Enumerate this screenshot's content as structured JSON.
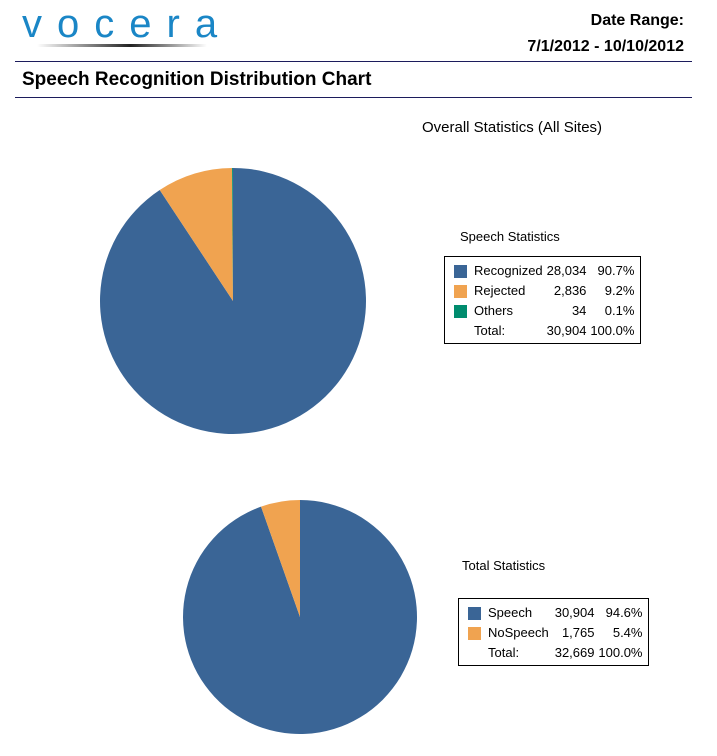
{
  "header": {
    "logo_text": "vocera",
    "date_range_label": "Date Range:",
    "date_range_value": "7/1/2012 - 10/10/2012",
    "report_title": "Speech Recognition Distribution Chart",
    "section_title": "Overall Statistics (All Sites)"
  },
  "colors": {
    "blue": "#3a6596",
    "orange": "#f0a350",
    "green": "#008c6e"
  },
  "speech_stats": {
    "title": "Speech Statistics",
    "rows": [
      {
        "label": "Recognized",
        "count": "28,034",
        "pct": "90.7%",
        "color": "#3a6596"
      },
      {
        "label": "Rejected",
        "count": "2,836",
        "pct": "9.2%",
        "color": "#f0a350"
      },
      {
        "label": "Others",
        "count": "34",
        "pct": "0.1%",
        "color": "#008c6e"
      }
    ],
    "total": {
      "label": "Total:",
      "count": "30,904",
      "pct": "100.0%"
    }
  },
  "total_stats": {
    "title": "Total Statistics",
    "rows": [
      {
        "label": "Speech",
        "count": "30,904",
        "pct": "94.6%",
        "color": "#3a6596"
      },
      {
        "label": "NoSpeech",
        "count": "1,765",
        "pct": "5.4%",
        "color": "#f0a350"
      }
    ],
    "total": {
      "label": "Total:",
      "count": "32,669",
      "pct": "100.0%"
    }
  },
  "chart_data": [
    {
      "type": "pie",
      "title": "Speech Statistics",
      "categories": [
        "Recognized",
        "Rejected",
        "Others"
      ],
      "values": [
        28034,
        2836,
        34
      ],
      "percentages": [
        90.7,
        9.2,
        0.1
      ],
      "colors": [
        "#3a6596",
        "#f0a350",
        "#008c6e"
      ],
      "total": 30904,
      "legend_position": "right"
    },
    {
      "type": "pie",
      "title": "Total Statistics",
      "categories": [
        "Speech",
        "NoSpeech"
      ],
      "values": [
        30904,
        1765
      ],
      "percentages": [
        94.6,
        5.4
      ],
      "colors": [
        "#3a6596",
        "#f0a350"
      ],
      "total": 32669,
      "legend_position": "right"
    }
  ]
}
